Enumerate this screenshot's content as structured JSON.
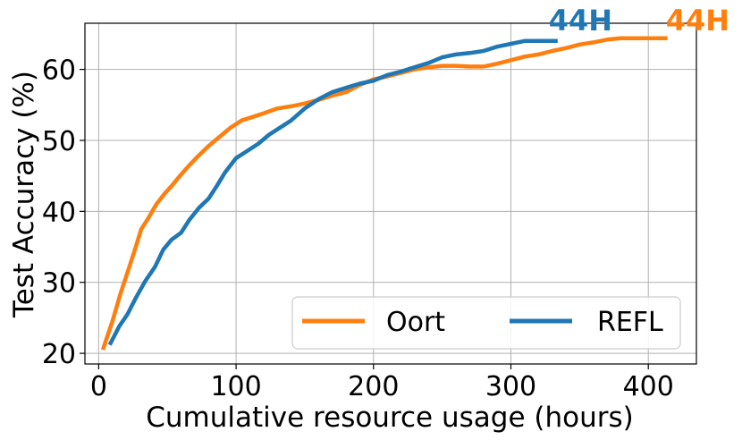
{
  "chart_data": {
    "type": "line",
    "xlabel": "Cumulative resource usage (hours)",
    "ylabel": "Test Accuracy (%)",
    "xlim": [
      -10,
      435
    ],
    "ylim": [
      18.5,
      66.5
    ],
    "xticks": [
      0,
      100,
      200,
      300,
      400
    ],
    "yticks": [
      20,
      30,
      40,
      50,
      60
    ],
    "grid": true,
    "legend": {
      "placement": "lower-right",
      "columns": 2
    },
    "series": [
      {
        "name": "Oort",
        "color": "#ff7f0e",
        "x": [
          3,
          10,
          16,
          22,
          27,
          31,
          36,
          42,
          48,
          54,
          60,
          66,
          72,
          80,
          88,
          96,
          104,
          112,
          120,
          130,
          140,
          150,
          160,
          170,
          180,
          190,
          200,
          210,
          220,
          230,
          240,
          250,
          260,
          270,
          280,
          290,
          300,
          310,
          320,
          330,
          340,
          350,
          360,
          370,
          380,
          390,
          400,
          414
        ],
        "y": [
          20.5,
          24.5,
          28.5,
          32.0,
          35.0,
          37.5,
          39.0,
          41.0,
          42.5,
          43.8,
          45.2,
          46.5,
          47.7,
          49.2,
          50.5,
          51.8,
          52.8,
          53.3,
          53.8,
          54.5,
          54.8,
          55.2,
          55.7,
          56.3,
          56.8,
          57.8,
          58.6,
          59.0,
          59.5,
          60.0,
          60.3,
          60.5,
          60.5,
          60.4,
          60.4,
          60.8,
          61.3,
          61.8,
          62.1,
          62.6,
          63.0,
          63.5,
          63.8,
          64.2,
          64.4,
          64.4,
          64.4,
          64.4
        ],
        "annotation": "44H"
      },
      {
        "name": "REFL",
        "color": "#1f77b4",
        "x": [
          8,
          15,
          21,
          27,
          34,
          41,
          47,
          53,
          60,
          66,
          73,
          80,
          86,
          92,
          100,
          108,
          116,
          124,
          132,
          140,
          150,
          160,
          170,
          180,
          190,
          200,
          210,
          220,
          230,
          240,
          250,
          260,
          270,
          280,
          290,
          300,
          310,
          320,
          334
        ],
        "y": [
          21.2,
          23.8,
          25.5,
          27.8,
          30.2,
          32.2,
          34.6,
          36.0,
          37.0,
          38.8,
          40.5,
          41.8,
          43.6,
          45.5,
          47.5,
          48.5,
          49.5,
          50.8,
          51.8,
          52.8,
          54.5,
          55.8,
          56.8,
          57.4,
          58.0,
          58.4,
          59.2,
          59.7,
          60.3,
          60.9,
          61.7,
          62.1,
          62.3,
          62.6,
          63.2,
          63.6,
          64.0,
          64.0,
          64.0
        ],
        "annotation": "44H"
      }
    ]
  }
}
